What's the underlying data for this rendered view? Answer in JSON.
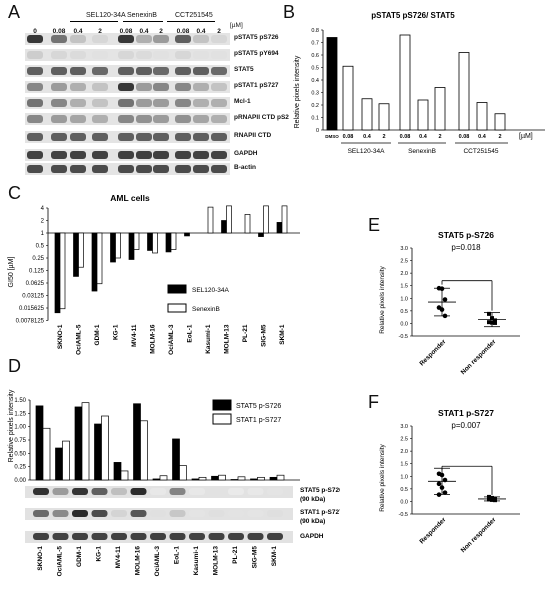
{
  "panels": {
    "A": {
      "label": "A",
      "groups": [
        "SEL120-34A",
        "SenexinB",
        "CCT251545"
      ],
      "unit": "[µM]",
      "doses": [
        "0",
        "0.08",
        "0.4",
        "2",
        "0.08",
        "0.4",
        "2",
        "0.08",
        "0.4",
        "2"
      ],
      "rows": [
        "pSTAT5 pS726",
        "pSTAT5 pY694",
        "STAT5",
        "pSTAT1 pS727",
        "Mcl-1",
        "pRNAPII CTD pS2",
        "RNAPII CTD",
        "GAPDH",
        "B-actin"
      ]
    },
    "B": {
      "label": "B",
      "title": "pSTAT5 pS726/ STAT5",
      "ylabel": "Relative pixels intensity",
      "unit": "[µM]",
      "dose_labels": [
        "DMSO",
        "0.08",
        "0.4",
        "2",
        "0.08",
        "0.4",
        "2",
        "0.08",
        "0.4",
        "2"
      ],
      "groups": [
        "SEL120-34A",
        "SenexinB",
        "CCT251545"
      ],
      "yticks": [
        "0",
        "0.1",
        "0.2",
        "0.3",
        "0.4",
        "0.5",
        "0.6",
        "0.7",
        "0.8"
      ]
    },
    "C": {
      "label": "C",
      "title": "AML cells",
      "ylabel": "GI50 [µM]",
      "yticks": [
        "4",
        "2",
        "1",
        "0.5",
        "0.25",
        "0.125",
        "0.0625",
        "0.03125",
        "0.015625",
        "0.0078125"
      ],
      "legend": [
        "SEL120-34A",
        "SenexinB"
      ]
    },
    "D": {
      "label": "D",
      "ylabel": "Relative pixels intensity",
      "yticks": [
        "0.00",
        "0.25",
        "0.50",
        "0.75",
        "1.00",
        "1.25",
        "1.50"
      ],
      "legend": [
        "STAT5 p-S726",
        "STAT1 p-S727"
      ],
      "blot_labels": [
        "STAT5 p-S726",
        "(90 kDa)",
        "STAT1 p-S727",
        "(90 kDa)",
        "GAPDH"
      ],
      "cells": [
        "SKNO-1",
        "OciAML-5",
        "GDM-1",
        "KG-1",
        "MV4-11",
        "MOLM-16",
        "OciAML-3",
        "EoL-1",
        "Kasumi-1",
        "MOLM-13",
        "PL-21",
        "SIG-M5",
        "SKM-1"
      ]
    },
    "E": {
      "label": "E",
      "title": "STAT5 p-S726",
      "pvalue": "p=0.018",
      "ylabel": "Relative pixels intensity",
      "yticks": [
        "-0.5",
        "0.0",
        "0.5",
        "1.0",
        "1.5",
        "2.0",
        "2.5",
        "3.0"
      ],
      "xcats": [
        "Responder",
        "Non responder"
      ]
    },
    "F": {
      "label": "F",
      "title": "STAT1 p-S727",
      "pvalue": "p=0.007",
      "ylabel": "Relative pixels intensity",
      "yticks": [
        "-0.5",
        "0.0",
        "0.5",
        "1.0",
        "1.5",
        "2.0",
        "2.5",
        "3.0"
      ],
      "xcats": [
        "Responder",
        "Non responder"
      ]
    }
  },
  "chart_data": [
    {
      "id": "B",
      "type": "bar",
      "title": "pSTAT5 pS726/ STAT5",
      "ylabel": "Relative pixels intensity",
      "categories": [
        "DMSO",
        "0.08",
        "0.4",
        "2",
        "0.08",
        "0.4",
        "2",
        "0.08",
        "0.4",
        "2"
      ],
      "values": [
        0.74,
        0.51,
        0.25,
        0.21,
        0.76,
        0.24,
        0.34,
        0.62,
        0.22,
        0.13
      ],
      "ylim": [
        0,
        0.8
      ]
    },
    {
      "id": "C",
      "type": "bar",
      "title": "AML cells",
      "ylabel": "GI50 [µM]",
      "categories": [
        "SKNO-1",
        "OciAML-5",
        "GDM-1",
        "KG-1",
        "MV4-11",
        "MOLM-16",
        "OciAML-3",
        "EoL-1",
        "Kasumi-1",
        "MOLM-13",
        "PL-21",
        "SIG-M5",
        "SKM-1"
      ],
      "series": [
        {
          "name": "SEL120-34A",
          "values": [
            0.012,
            0.09,
            0.04,
            0.2,
            0.23,
            0.38,
            0.35,
            0.85,
            1,
            2,
            1,
            0.82,
            1.8
          ]
        },
        {
          "name": "SenexinB",
          "values": [
            0.015,
            0.15,
            0.06,
            0.25,
            0.4,
            0.33,
            0.4,
            1,
            4.2,
            4.5,
            2.8,
            4.5,
            4.5
          ]
        }
      ]
    },
    {
      "id": "D",
      "type": "bar",
      "ylabel": "Relative pixels intensity",
      "categories": [
        "SKNO-1",
        "OciAML-5",
        "GDM-1",
        "KG-1",
        "MV4-11",
        "MOLM-16",
        "OciAML-3",
        "EoL-1",
        "Kasumi-1",
        "MOLM-13",
        "PL-21",
        "SIG-M5",
        "SKM-1"
      ],
      "series": [
        {
          "name": "STAT5 p-S726",
          "values": [
            1.39,
            0.6,
            1.37,
            1.05,
            0.33,
            1.43,
            0.02,
            0.77,
            0.02,
            0.07,
            0.01,
            0.02,
            0.05
          ]
        },
        {
          "name": "STAT1 p-S727",
          "values": [
            0.97,
            0.73,
            1.45,
            1.2,
            0.17,
            1.11,
            0.08,
            0.27,
            0.05,
            0.09,
            0.06,
            0.05,
            0.09
          ]
        }
      ],
      "ylim": [
        0,
        1.5
      ]
    },
    {
      "id": "E",
      "type": "scatter",
      "title": "STAT5 p-S726",
      "ylabel": "Relative pixels intensity",
      "categories": [
        "Responder",
        "Non responder"
      ],
      "points": [
        [
          1.4,
          1.38,
          0.95,
          0.63,
          0.55,
          0.3
        ],
        [
          0.38,
          0.21,
          0.12,
          0.05,
          0.03,
          0.02
        ]
      ],
      "mean": [
        0.85,
        0.15
      ],
      "sd": [
        0.55,
        0.28
      ],
      "ylim": [
        -0.5,
        3.0
      ]
    },
    {
      "id": "F",
      "type": "scatter",
      "title": "STAT1 p-S727",
      "ylabel": "Relative pixels intensity",
      "categories": [
        "Responder",
        "Non responder"
      ],
      "points": [
        [
          1.1,
          1.05,
          0.85,
          0.7,
          0.55,
          0.35,
          0.27
        ],
        [
          0.18,
          0.14,
          0.1,
          0.08,
          0.06,
          0.05
        ]
      ],
      "mean": [
        0.8,
        0.1
      ],
      "sd": [
        0.52,
        0.08
      ],
      "ylim": [
        -0.5,
        3.0
      ]
    }
  ]
}
